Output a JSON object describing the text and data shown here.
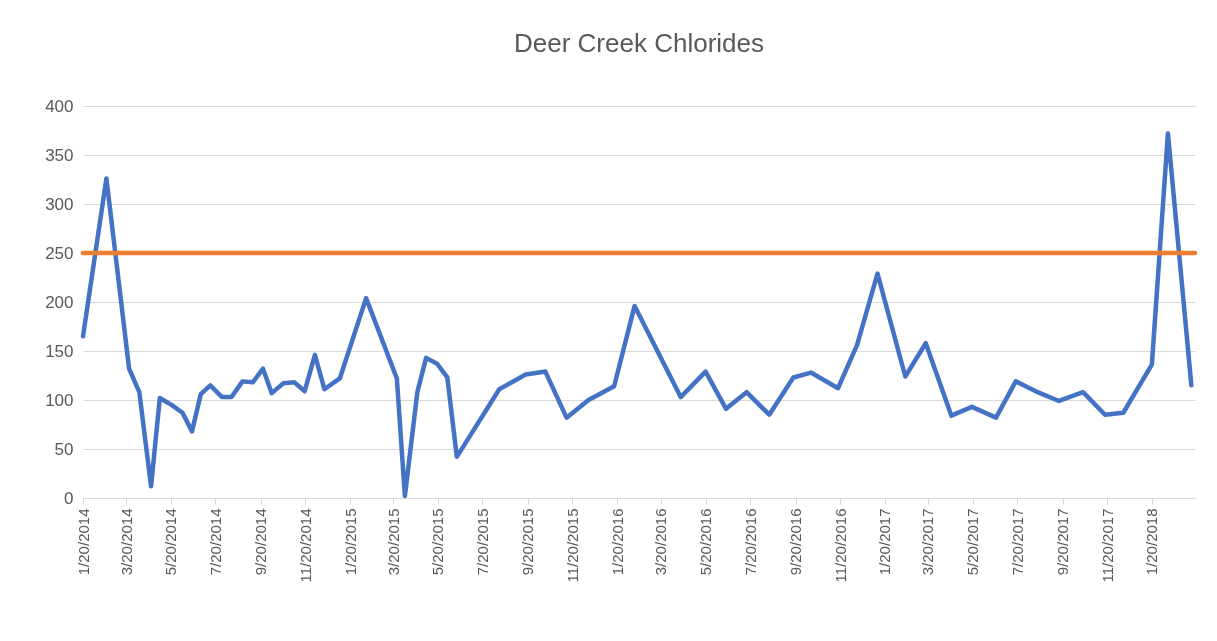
{
  "chart_data": {
    "type": "line",
    "title": "Deer Creek Chlorides",
    "x": [
      "2014-01-20",
      "2014-02-21",
      "2014-03-24",
      "2014-04-07",
      "2014-04-23",
      "2014-05-05",
      "2014-05-21",
      "2014-06-05",
      "2014-06-18",
      "2014-06-30",
      "2014-07-13",
      "2014-07-29",
      "2014-08-11",
      "2014-08-26",
      "2014-09-09",
      "2014-09-23",
      "2014-10-05",
      "2014-10-21",
      "2014-11-05",
      "2014-11-19",
      "2014-12-03",
      "2014-12-16",
      "2015-01-06",
      "2015-02-11",
      "2015-03-25",
      "2015-04-05",
      "2015-04-22",
      "2015-05-04",
      "2015-05-19",
      "2015-06-02",
      "2015-06-15",
      "2015-08-12",
      "2015-09-17",
      "2015-10-14",
      "2015-11-12",
      "2015-12-12",
      "2016-01-16",
      "2016-02-13",
      "2016-04-16",
      "2016-05-20",
      "2016-06-17",
      "2016-07-15",
      "2016-08-15",
      "2016-09-17",
      "2016-10-11",
      "2016-11-17",
      "2016-12-13",
      "2017-01-10",
      "2017-02-17",
      "2017-03-17",
      "2017-04-21",
      "2017-05-19",
      "2017-06-21",
      "2017-07-18",
      "2017-08-17",
      "2017-09-15",
      "2017-10-18",
      "2017-11-17",
      "2017-12-12",
      "2018-01-20",
      "2018-02-11",
      "2018-03-15"
    ],
    "series": [
      {
        "color": "#4472c4",
        "values": [
          165,
          326,
          132,
          108,
          12,
          102,
          95,
          87,
          68,
          106,
          115,
          103,
          103,
          119,
          118,
          132,
          107,
          117,
          118,
          109,
          146,
          111,
          122,
          204,
          122,
          2,
          108,
          143,
          137,
          123,
          42,
          111,
          126,
          129,
          82,
          100,
          114,
          196,
          103,
          129,
          91,
          108,
          85,
          123,
          128,
          112,
          156,
          229,
          124,
          158,
          84,
          93,
          82,
          119,
          108,
          99,
          108,
          85,
          87,
          136,
          372,
          115
        ]
      }
    ],
    "ref_lines": [
      {
        "axis": "y",
        "value": 250,
        "color": "#ed7d31"
      }
    ],
    "xlim": [
      "2014-01-20",
      "2018-03-20"
    ],
    "xticks": [
      {
        "value": "2014-01-20",
        "label": "1/20/2014"
      },
      {
        "value": "2014-03-20",
        "label": "3/20/2014"
      },
      {
        "value": "2014-05-20",
        "label": "5/20/2014"
      },
      {
        "value": "2014-07-20",
        "label": "7/20/2014"
      },
      {
        "value": "2014-09-20",
        "label": "9/20/2014"
      },
      {
        "value": "2014-11-20",
        "label": "11/20/2014"
      },
      {
        "value": "2015-01-20",
        "label": "1/20/2015"
      },
      {
        "value": "2015-03-20",
        "label": "3/20/2015"
      },
      {
        "value": "2015-05-20",
        "label": "5/20/2015"
      },
      {
        "value": "2015-07-20",
        "label": "7/20/2015"
      },
      {
        "value": "2015-09-20",
        "label": "9/20/2015"
      },
      {
        "value": "2015-11-20",
        "label": "11/20/2015"
      },
      {
        "value": "2016-01-20",
        "label": "1/20/2016"
      },
      {
        "value": "2016-03-20",
        "label": "3/20/2016"
      },
      {
        "value": "2016-05-20",
        "label": "5/20/2016"
      },
      {
        "value": "2016-07-20",
        "label": "7/20/2016"
      },
      {
        "value": "2016-09-20",
        "label": "9/20/2016"
      },
      {
        "value": "2016-11-20",
        "label": "11/20/2016"
      },
      {
        "value": "2017-01-20",
        "label": "1/20/2017"
      },
      {
        "value": "2017-03-20",
        "label": "3/20/2017"
      },
      {
        "value": "2017-05-20",
        "label": "5/20/2017"
      },
      {
        "value": "2017-07-20",
        "label": "7/20/2017"
      },
      {
        "value": "2017-09-20",
        "label": "9/20/2017"
      },
      {
        "value": "2017-11-20",
        "label": "11/20/2017"
      },
      {
        "value": "2018-01-20",
        "label": "1/20/2018"
      }
    ],
    "ylim": [
      0,
      400
    ],
    "yticks": [
      0,
      50,
      100,
      150,
      200,
      250,
      300,
      350,
      400
    ],
    "grid": "y",
    "line_style": "solid"
  }
}
